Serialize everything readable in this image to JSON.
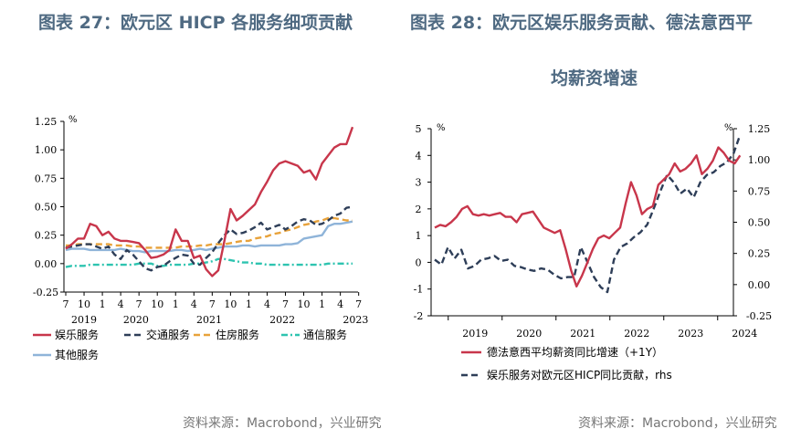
{
  "titles": {
    "left": "图表 27：欧元区 HICP 各服务细项贡献",
    "right_line1": "图表 28：欧元区娱乐服务贡献、德法意西平",
    "right_line2": "均薪资增速"
  },
  "sources": {
    "left": "资料来源：Macrobond，兴业研究",
    "right": "资料来源：Macrobond，兴业研究"
  },
  "chart_data": [
    {
      "type": "line",
      "unit_label": "%",
      "ylim": [
        -0.25,
        1.25
      ],
      "yticks": [
        "1.25",
        "1.00",
        "0.75",
        "0.50",
        "0.25",
        "0.00",
        "-0.25"
      ],
      "month_ticks": [
        "7",
        "10",
        "1",
        "4",
        "7",
        "10",
        "1",
        "4",
        "7",
        "10",
        "1",
        "4",
        "7",
        "10",
        "1",
        "4",
        "7"
      ],
      "year_labels": [
        "2019",
        "2020",
        "2021",
        "2022",
        "2023"
      ],
      "x_start": "2019-07",
      "series": [
        {
          "name": "娱乐服务",
          "color": "#c8364b",
          "dash": "solid",
          "values": [
            0.13,
            0.17,
            0.22,
            0.22,
            0.35,
            0.33,
            0.25,
            0.28,
            0.22,
            0.2,
            0.2,
            0.19,
            0.18,
            0.12,
            0.05,
            0.06,
            0.08,
            0.12,
            0.3,
            0.2,
            0.2,
            0.05,
            0.07,
            -0.05,
            -0.11,
            -0.06,
            0.2,
            0.48,
            0.38,
            0.42,
            0.47,
            0.52,
            0.63,
            0.72,
            0.82,
            0.88,
            0.9,
            0.88,
            0.86,
            0.8,
            0.82,
            0.74,
            0.88,
            0.95,
            1.02,
            1.05,
            1.05,
            1.2
          ]
        },
        {
          "name": "交通服务",
          "color": "#2e3e58",
          "dash": "dash",
          "values": [
            0.14,
            0.15,
            0.16,
            0.17,
            0.17,
            0.15,
            0.13,
            0.15,
            0.08,
            0.04,
            0.12,
            0.08,
            0.02,
            -0.04,
            -0.06,
            -0.03,
            -0.02,
            0.02,
            0.05,
            0.08,
            0.07,
            0.0,
            -0.01,
            0.05,
            0.1,
            0.18,
            0.25,
            0.3,
            0.26,
            0.27,
            0.29,
            0.32,
            0.36,
            0.3,
            0.32,
            0.34,
            0.3,
            0.33,
            0.37,
            0.39,
            0.38,
            0.34,
            0.35,
            0.38,
            0.42,
            0.44,
            0.49,
            0.5
          ]
        },
        {
          "name": "住房服务",
          "color": "#e8a23a",
          "dash": "dash",
          "values": [
            0.16,
            0.16,
            0.17,
            0.17,
            0.17,
            0.17,
            0.17,
            0.17,
            0.16,
            0.16,
            0.16,
            0.15,
            0.15,
            0.14,
            0.14,
            0.14,
            0.14,
            0.14,
            0.14,
            0.15,
            0.15,
            0.15,
            0.16,
            0.16,
            0.17,
            0.17,
            0.17,
            0.18,
            0.19,
            0.2,
            0.2,
            0.22,
            0.23,
            0.24,
            0.26,
            0.27,
            0.29,
            0.3,
            0.32,
            0.34,
            0.35,
            0.37,
            0.38,
            0.4,
            0.4,
            0.39,
            0.38,
            0.38
          ]
        },
        {
          "name": "通信服务",
          "color": "#2ec4b0",
          "dash": "dashdot",
          "values": [
            -0.03,
            -0.02,
            -0.02,
            -0.02,
            -0.01,
            -0.01,
            -0.01,
            -0.01,
            -0.01,
            -0.01,
            -0.01,
            -0.01,
            0.0,
            0.0,
            0.0,
            -0.02,
            -0.02,
            -0.01,
            -0.01,
            -0.01,
            -0.01,
            0.0,
            0.0,
            0.01,
            0.02,
            0.04,
            0.04,
            0.03,
            0.02,
            0.01,
            0.01,
            0.0,
            0.0,
            -0.01,
            -0.01,
            -0.01,
            -0.01,
            -0.01,
            -0.01,
            -0.01,
            -0.01,
            -0.01,
            -0.01,
            0.0,
            0.0,
            0.0,
            0.0,
            0.0
          ]
        },
        {
          "name": "其他服务",
          "color": "#8fb4d9",
          "dash": "solid",
          "values": [
            0.12,
            0.13,
            0.13,
            0.13,
            0.12,
            0.12,
            0.12,
            0.12,
            0.12,
            0.13,
            0.12,
            0.11,
            0.11,
            0.1,
            0.11,
            0.11,
            0.11,
            0.11,
            0.12,
            0.12,
            0.11,
            0.12,
            0.13,
            0.12,
            0.13,
            0.14,
            0.15,
            0.15,
            0.15,
            0.16,
            0.16,
            0.15,
            0.16,
            0.16,
            0.16,
            0.16,
            0.17,
            0.17,
            0.18,
            0.22,
            0.23,
            0.24,
            0.25,
            0.33,
            0.35,
            0.35,
            0.36,
            0.37
          ]
        }
      ]
    },
    {
      "type": "line",
      "left_unit_label": "%",
      "right_unit_label": "%",
      "ylim_left": [
        -2,
        5
      ],
      "ylim_right": [
        -0.25,
        1.25
      ],
      "yticks_left": [
        "5",
        "4",
        "3",
        "2",
        "1",
        "0",
        "-1",
        "-2"
      ],
      "yticks_right": [
        "1.25",
        "1.00",
        "0.75",
        "0.50",
        "0.25",
        "0.00",
        "-0.25"
      ],
      "year_labels": [
        "2019",
        "2020",
        "2021",
        "2022",
        "2023",
        "2024"
      ],
      "x_start": "2018-10",
      "series": [
        {
          "name": "德法意西平均薪资同比增速（+1Y）",
          "color": "#c8364b",
          "dash": "solid",
          "axis": "left",
          "values": [
            1.3,
            1.4,
            1.35,
            1.5,
            1.7,
            2.0,
            2.1,
            1.8,
            1.75,
            1.8,
            1.75,
            1.8,
            1.85,
            1.7,
            1.7,
            1.5,
            1.8,
            1.85,
            1.9,
            1.6,
            1.3,
            1.2,
            1.1,
            1.2,
            0.5,
            -0.3,
            -0.9,
            -0.5,
            0.0,
            0.5,
            0.9,
            1.0,
            0.9,
            1.1,
            1.3,
            2.2,
            3.0,
            2.5,
            1.8,
            2.0,
            2.1,
            2.9,
            3.1,
            3.3,
            3.7,
            3.4,
            3.5,
            3.7,
            4.0,
            3.3,
            3.5,
            3.8,
            4.3,
            4.1,
            3.8,
            3.7,
            4.0
          ]
        },
        {
          "name": "娱乐服务对欧元区HICP同比贡献，rhs",
          "color": "#2e3e58",
          "dash": "dash",
          "axis": "right",
          "values": [
            0.2,
            0.16,
            0.3,
            0.21,
            0.28,
            0.13,
            0.15,
            0.2,
            0.21,
            0.23,
            0.19,
            0.2,
            0.15,
            0.14,
            0.12,
            0.11,
            0.13,
            0.12,
            0.08,
            0.05,
            0.06,
            0.06,
            0.3,
            0.18,
            0.06,
            -0.02,
            -0.06,
            0.2,
            0.3,
            0.33,
            0.38,
            0.42,
            0.48,
            0.61,
            0.75,
            0.88,
            0.82,
            0.73,
            0.77,
            0.7,
            0.82,
            0.88,
            0.9,
            0.95,
            0.98,
            1.05,
            1.2
          ]
        }
      ]
    }
  ],
  "legends": {
    "left_rows": [
      [
        "娱乐服务",
        "交通服务",
        "住房服务",
        "通信服务"
      ],
      [
        "其他服务"
      ]
    ],
    "right": [
      "德法意西平均薪资同比增速（+1Y）",
      "娱乐服务对欧元区HICP同比贡献，rhs"
    ]
  }
}
